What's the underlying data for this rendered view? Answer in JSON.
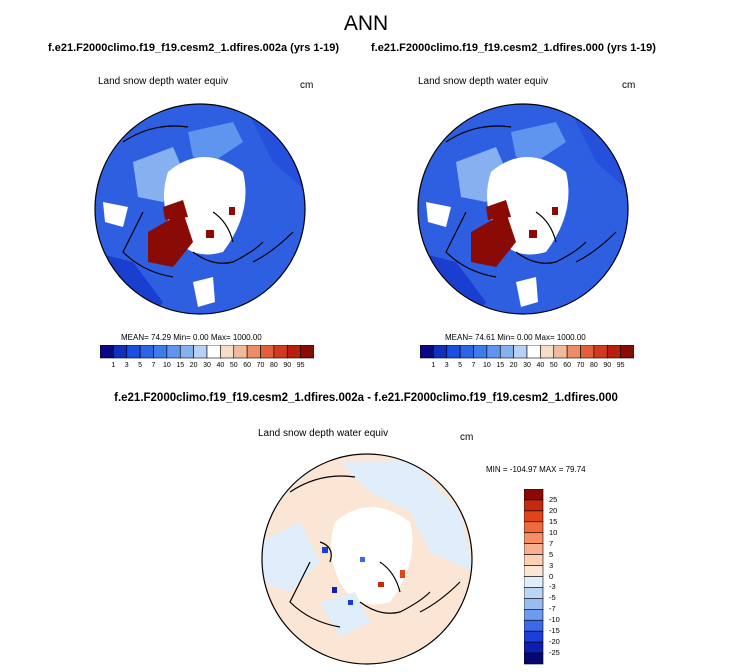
{
  "title": "ANN",
  "panel_a": {
    "case": "f.e21.F2000climo.f19_f19.cesm2_1.dfires.002a (yrs 1-19)",
    "variable": "Land snow depth water equiv",
    "units": "cm",
    "stats": "MEAN= 74.29  Min=  0.00  Max= 1000.00"
  },
  "panel_b": {
    "case": "f.e21.F2000climo.f19_f19.cesm2_1.dfires.000 (yrs 1-19)",
    "variable": "Land snow depth water equiv",
    "units": "cm",
    "stats": "MEAN= 74.61  Min=  0.00  Max= 1000.00"
  },
  "panel_diff": {
    "title": "f.e21.F2000climo.f19_f19.cesm2_1.dfires.002a - f.e21.F2000climo.f19_f19.cesm2_1.dfires.000",
    "variable": "Land snow depth water equiv",
    "units": "cm",
    "stats": "MIN = -104.97 MAX =  79.74"
  },
  "colorbar_abs": {
    "levels": [
      "1",
      "3",
      "5",
      "7",
      "10",
      "15",
      "20",
      "30",
      "40",
      "50",
      "60",
      "70",
      "80",
      "90",
      "95"
    ],
    "colors": [
      "#0a0a80",
      "#1030c0",
      "#1a4fe0",
      "#2a65ea",
      "#3e7cec",
      "#5f95ee",
      "#86b0f0",
      "#b8d0f6",
      "#ffffff",
      "#f8dccb",
      "#f4b89c",
      "#ee8c68",
      "#e25f3c",
      "#d23a1f",
      "#b81f10",
      "#8a0a05"
    ]
  },
  "colorbar_diff": {
    "levels": [
      "25",
      "20",
      "15",
      "10",
      "7",
      "5",
      "3",
      "0",
      "-3",
      "-5",
      "-7",
      "-10",
      "-15",
      "-20",
      "-25"
    ],
    "colors": [
      "#8a0a05",
      "#c42a0e",
      "#e04418",
      "#f06a3a",
      "#f58f65",
      "#f8b090",
      "#fad0b6",
      "#fbe6d6",
      "#dfeefa",
      "#bcd5f5",
      "#9bbcf0",
      "#6e9af0",
      "#3a6ae8",
      "#1a3fd8",
      "#0c1fb0",
      "#06086e"
    ]
  }
}
